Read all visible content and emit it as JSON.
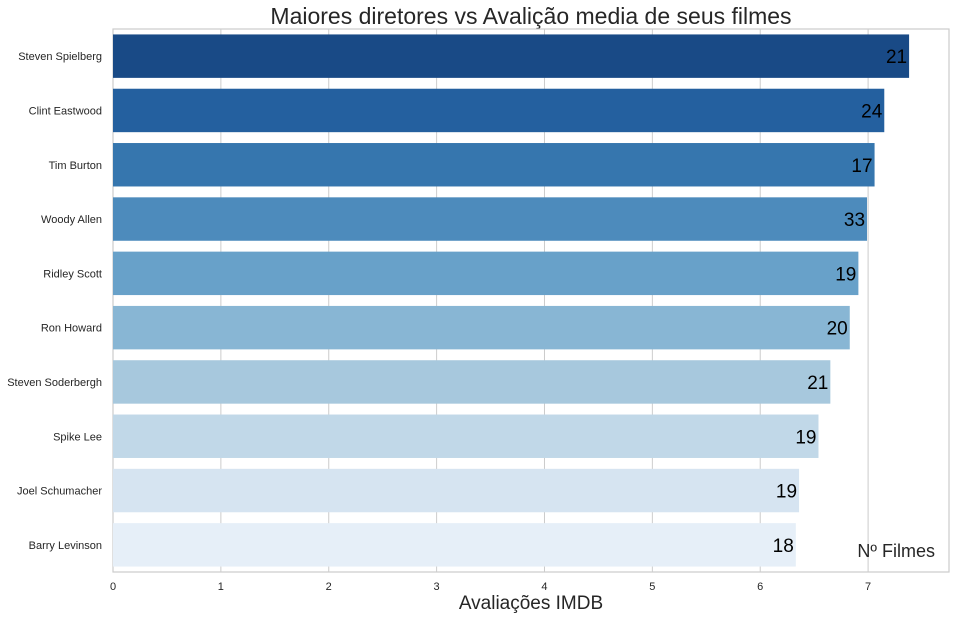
{
  "chart_data": {
    "type": "bar",
    "orientation": "horizontal",
    "title": "Maiores diretores vs Avalição media de seus filmes",
    "xlabel": "Avaliações IMDB",
    "ylabel": "",
    "xlim": [
      0,
      7.75
    ],
    "xticks": [
      "0",
      "1",
      "2",
      "3",
      "4",
      "5",
      "6",
      "7"
    ],
    "grid": true,
    "annotation": "Nº Filmes",
    "categories": [
      "Steven Spielberg",
      "Clint Eastwood",
      "Tim Burton",
      "Woody Allen",
      "Ridley Scott",
      "Ron Howard",
      "Steven Soderbergh",
      "Spike Lee",
      "Joel Schumacher",
      "Barry Levinson"
    ],
    "values": [
      7.38,
      7.15,
      7.06,
      6.99,
      6.91,
      6.83,
      6.65,
      6.54,
      6.36,
      6.33
    ],
    "data_labels": [
      "21",
      "24",
      "17",
      "33",
      "19",
      "20",
      "21",
      "19",
      "19",
      "18"
    ],
    "colors": [
      "#194a86",
      "#24609f",
      "#3676ae",
      "#4d8bbc",
      "#68a1c9",
      "#88b6d4",
      "#a7c8dd",
      "#c1d8e8",
      "#d6e4f1",
      "#e6eff8"
    ]
  }
}
